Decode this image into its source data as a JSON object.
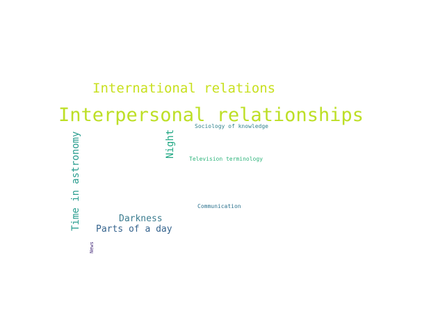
{
  "cloud": {
    "words": [
      {
        "text": "Interpersonal relationships",
        "color": "#bddf26"
      },
      {
        "text": "International relations",
        "color": "#c8e020"
      },
      {
        "text": "Time in astronomy",
        "color": "#2a9d8f"
      },
      {
        "text": "Night",
        "color": "#22a884"
      },
      {
        "text": "Darkness",
        "color": "#3b7c8f"
      },
      {
        "text": "Parts of a day",
        "color": "#35638d"
      },
      {
        "text": "Sociology of knowledge",
        "color": "#31838e"
      },
      {
        "text": "Television terminology",
        "color": "#2fb47c"
      },
      {
        "text": "Communication",
        "color": "#2c728e"
      },
      {
        "text": "News",
        "color": "#472d7b"
      }
    ]
  }
}
